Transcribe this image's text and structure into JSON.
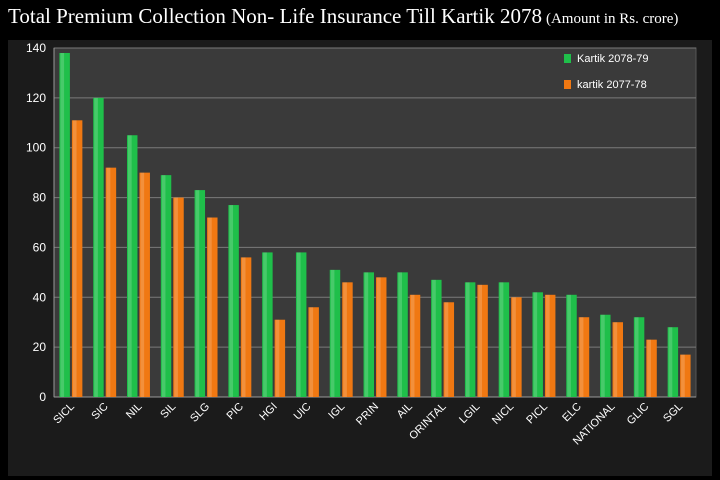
{
  "page": {
    "title_main": "Total Premium Collection Non- Life Insurance Till Kartik 2078",
    "title_sub": "(Amount in Rs. crore)"
  },
  "colors": {
    "background": "#000000",
    "plot_area": "#3a3a3a",
    "series_1": "#1fbf4a",
    "series_2": "#f07812",
    "gridline": "#7a7a7a",
    "text": "#ffffff"
  },
  "chart_data": {
    "type": "bar",
    "title": "Total Premium Collection Non- Life Insurance Till Kartik 2078 (Amount in Rs. crore)",
    "xlabel": "",
    "ylabel": "",
    "ylim": [
      0,
      140
    ],
    "yticks": [
      0,
      20,
      40,
      60,
      80,
      100,
      120,
      140
    ],
    "grid": true,
    "legend_position": "top-right",
    "categories": [
      "SICL",
      "SIC",
      "NIL",
      "SIL",
      "SLG",
      "PIC",
      "HGI",
      "UIC",
      "IGL",
      "PRIN",
      "AIL",
      "ORINTAL",
      "LGIL",
      "NICL",
      "PICL",
      "ELC",
      "NATIONAL",
      "GLIC",
      "SGL"
    ],
    "series": [
      {
        "name": "Kartik 2078-79",
        "values": [
          138,
          120,
          105,
          89,
          83,
          77,
          58,
          58,
          51,
          50,
          50,
          47,
          46,
          46,
          42,
          41,
          33,
          32,
          28
        ]
      },
      {
        "name": "kartik 2077-78",
        "values": [
          111,
          92,
          90,
          80,
          72,
          56,
          31,
          36,
          46,
          48,
          41,
          38,
          45,
          40,
          41,
          32,
          30,
          23,
          17
        ]
      }
    ]
  }
}
